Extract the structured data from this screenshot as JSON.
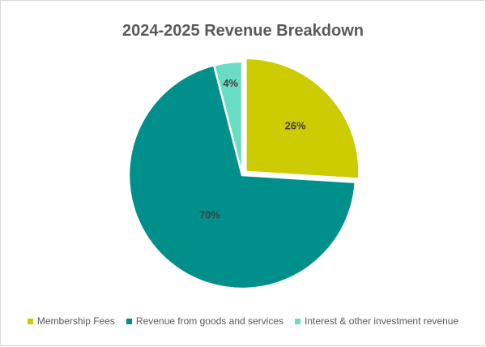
{
  "chart_data": {
    "type": "pie",
    "title": "2024-2025 Revenue Breakdown",
    "categories": [
      "Membership Fees",
      "Revenue from goods and services",
      "Interest & other investment revenue"
    ],
    "values": [
      26,
      70,
      4
    ],
    "labels": [
      "26%",
      "70%",
      "4%"
    ],
    "colors": [
      "#cccc00",
      "#008f8a",
      "#6bdcc4"
    ],
    "exploded": "Membership Fees",
    "legend_position": "bottom"
  }
}
